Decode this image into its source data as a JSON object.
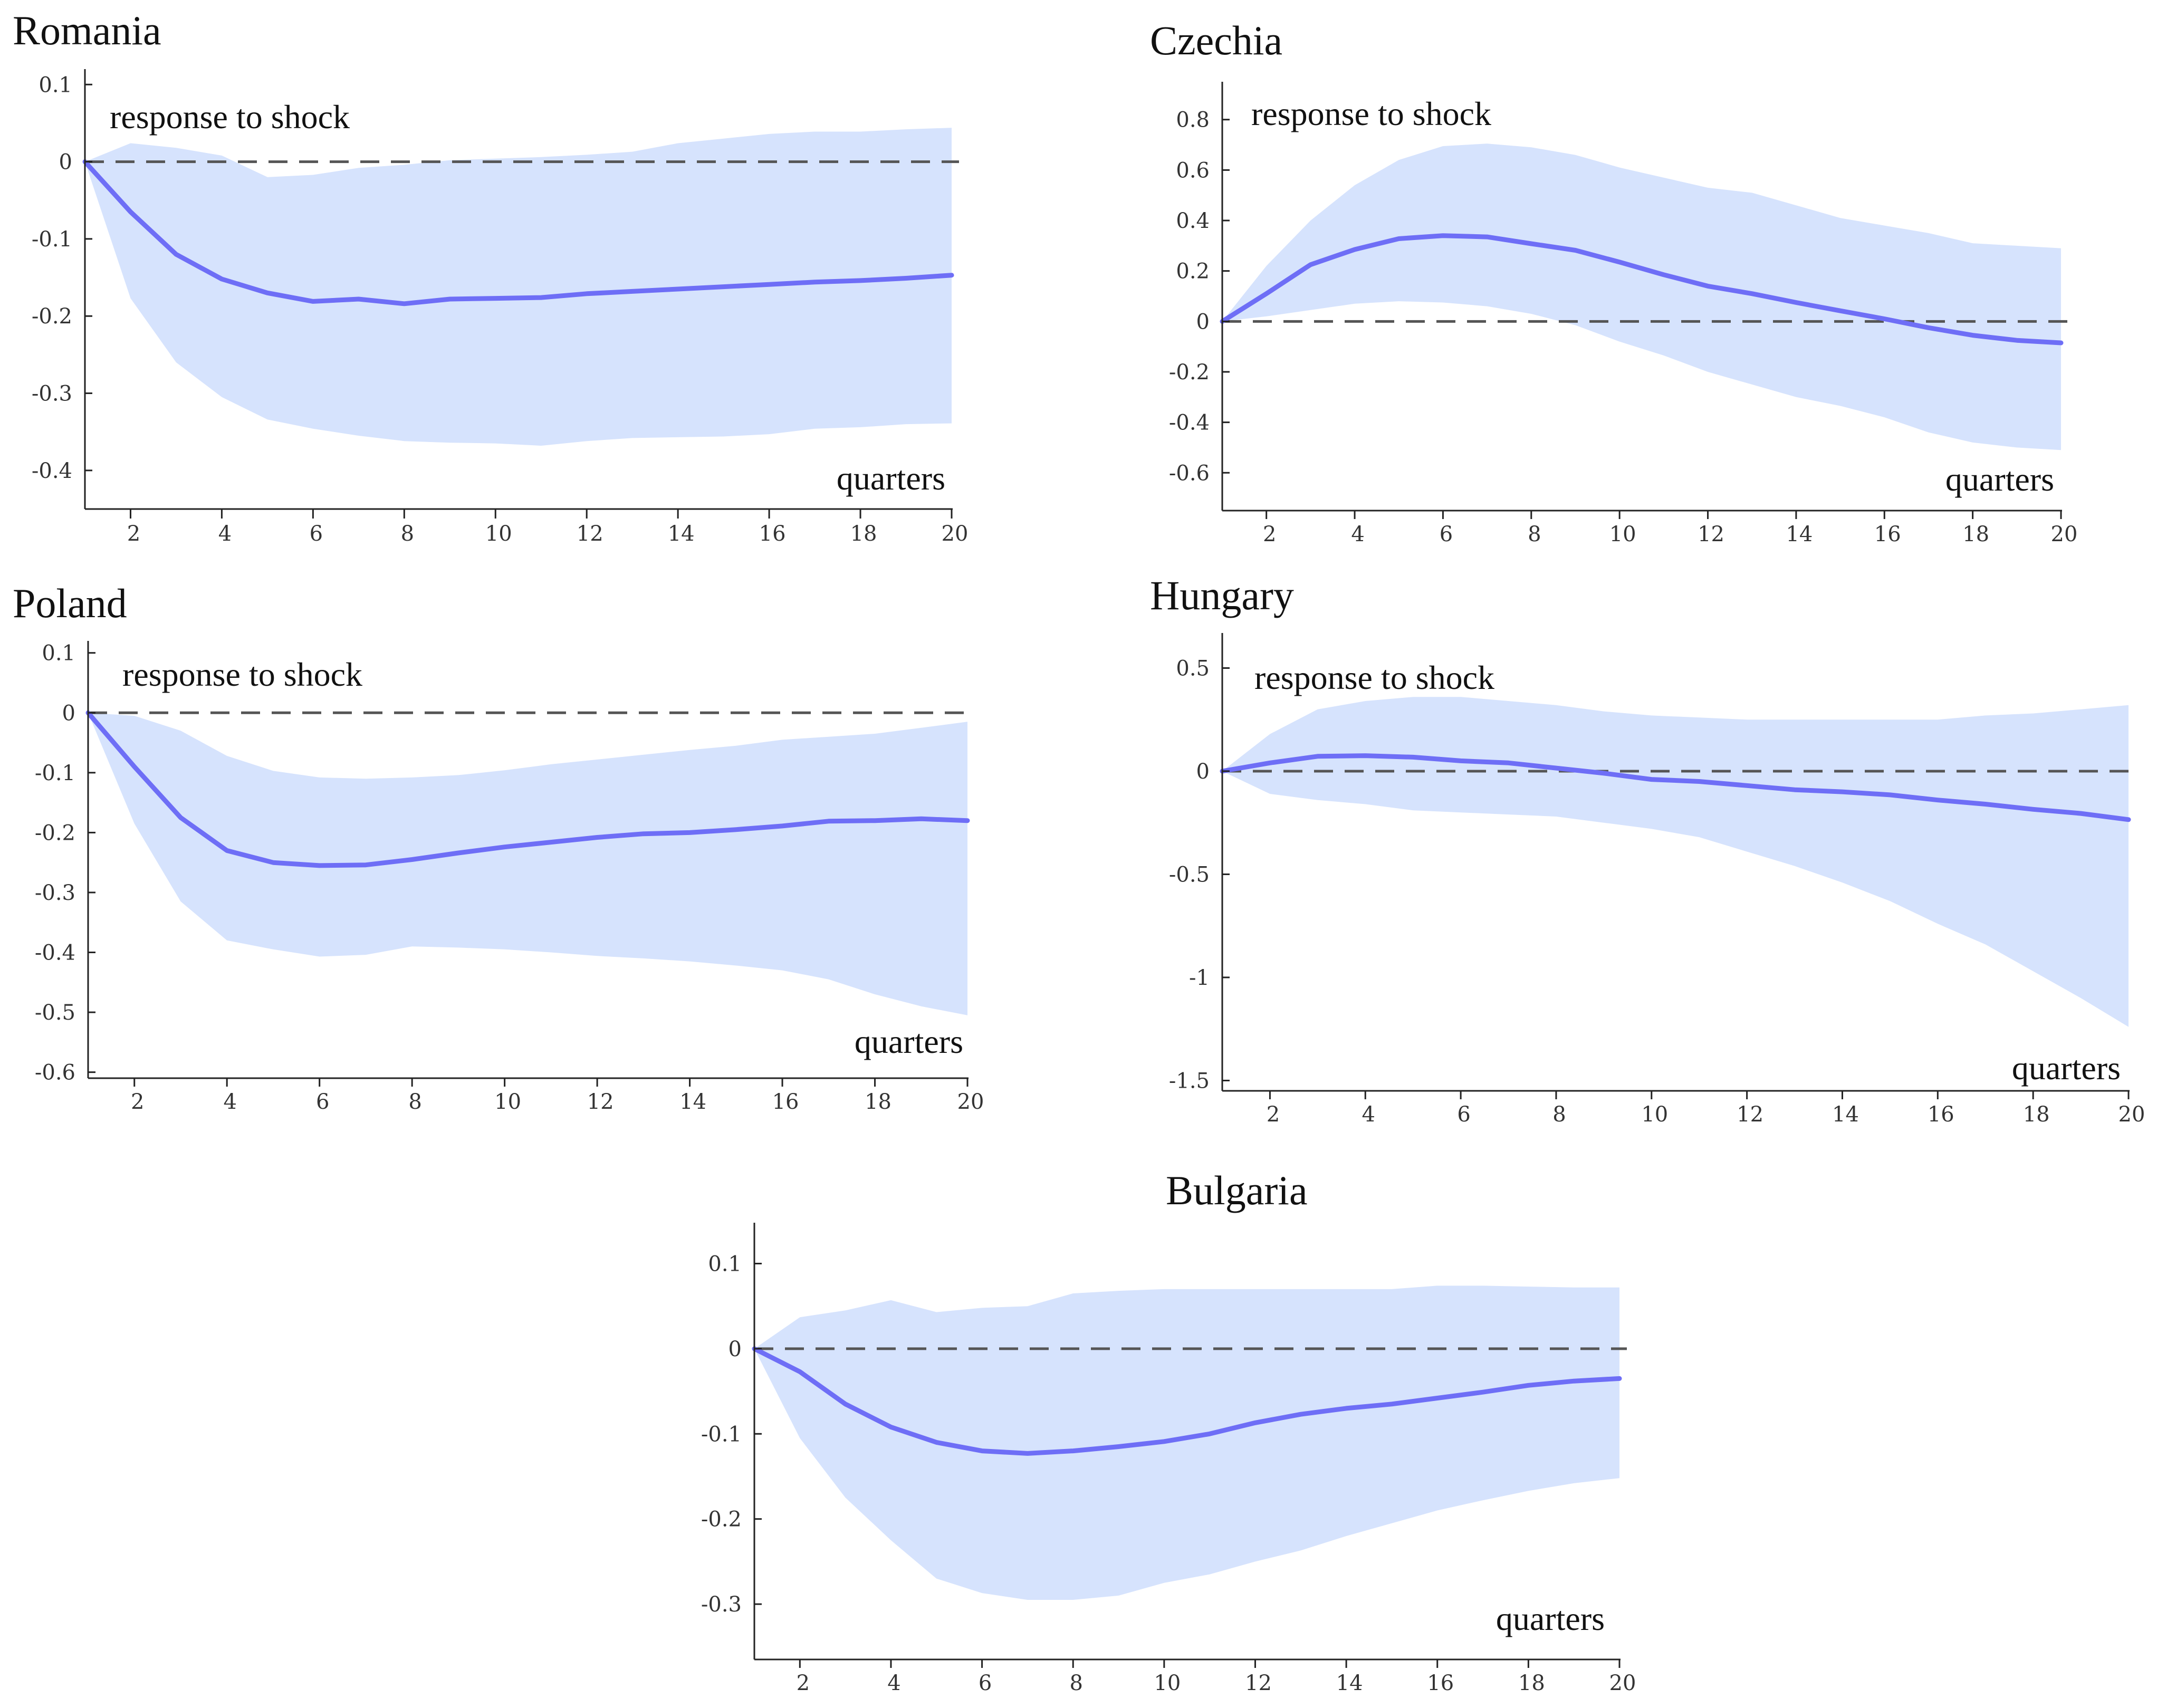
{
  "chart_data": [
    {
      "type": "area",
      "title": "Romania",
      "annotation": "response to shock",
      "xlabel": "quarters",
      "xlim": [
        1,
        20
      ],
      "ylim": [
        -0.45,
        0.12
      ],
      "x_ticks": [
        2,
        4,
        6,
        8,
        10,
        12,
        14,
        16,
        18,
        20
      ],
      "y_ticks": [
        0.1,
        0,
        -0.1,
        -0.2,
        -0.3,
        -0.4
      ],
      "x_tick_labels": [
        "2",
        "4",
        "6",
        "8",
        "10",
        "12",
        "14",
        "16",
        "18",
        "20"
      ],
      "y_tick_labels": [
        "0.1",
        "0",
        "-0.1",
        "-0.2",
        "-0.3",
        "-0.4"
      ],
      "zero_line": true,
      "series": [
        {
          "name": "median response",
          "x": [
            1,
            2,
            3,
            4,
            5,
            6,
            7,
            8,
            9,
            10,
            11,
            12,
            13,
            14,
            15,
            16,
            17,
            18,
            19,
            20
          ],
          "values": [
            0,
            -0.065,
            -0.12,
            -0.152,
            -0.17,
            -0.181,
            -0.178,
            -0.184,
            -0.178,
            -0.177,
            -0.176,
            -0.171,
            -0.168,
            -0.165,
            -0.162,
            -0.159,
            -0.156,
            -0.154,
            -0.151,
            -0.147
          ]
        },
        {
          "name": "upper band",
          "x": [
            1,
            2,
            3,
            4,
            5,
            6,
            7,
            8,
            9,
            10,
            11,
            12,
            13,
            14,
            15,
            16,
            17,
            18,
            19,
            20
          ],
          "values": [
            0,
            0.024,
            0.018,
            0.008,
            -0.02,
            -0.017,
            -0.008,
            -0.004,
            0.002,
            0.004,
            0.006,
            0.009,
            0.013,
            0.024,
            0.03,
            0.036,
            0.039,
            0.039,
            0.042,
            0.044
          ]
        },
        {
          "name": "lower band",
          "x": [
            1,
            2,
            3,
            4,
            5,
            6,
            7,
            8,
            9,
            10,
            11,
            12,
            13,
            14,
            15,
            16,
            17,
            18,
            19,
            20
          ],
          "values": [
            0,
            -0.177,
            -0.26,
            -0.305,
            -0.334,
            -0.346,
            -0.355,
            -0.362,
            -0.364,
            -0.365,
            -0.368,
            -0.362,
            -0.358,
            -0.357,
            -0.356,
            -0.353,
            -0.346,
            -0.344,
            -0.34,
            -0.339
          ]
        }
      ]
    },
    {
      "type": "area",
      "title": "Czechia",
      "annotation": "response to shock",
      "xlabel": "quarters",
      "xlim": [
        1,
        20
      ],
      "ylim": [
        -0.75,
        0.95
      ],
      "x_ticks": [
        2,
        4,
        6,
        8,
        10,
        12,
        14,
        16,
        18,
        20
      ],
      "y_ticks": [
        0.8,
        0.6,
        0.4,
        0.2,
        0,
        -0.2,
        -0.4,
        -0.6
      ],
      "x_tick_labels": [
        "2",
        "4",
        "6",
        "8",
        "10",
        "12",
        "14",
        "16",
        "18",
        "20"
      ],
      "y_tick_labels": [
        "0.8",
        "0.6",
        "0.4",
        "0.2",
        "0",
        "-0.2",
        "-0.4",
        "-0.6"
      ],
      "zero_line": true,
      "series": [
        {
          "name": "median response",
          "x": [
            1,
            2,
            3,
            4,
            5,
            6,
            7,
            8,
            9,
            10,
            11,
            12,
            13,
            14,
            15,
            16,
            17,
            18,
            19,
            20
          ],
          "values": [
            0,
            0.11,
            0.225,
            0.285,
            0.328,
            0.34,
            0.335,
            0.308,
            0.282,
            0.235,
            0.185,
            0.14,
            0.11,
            0.075,
            0.042,
            0.01,
            -0.025,
            -0.055,
            -0.075,
            -0.085
          ]
        },
        {
          "name": "upper band",
          "x": [
            1,
            2,
            3,
            4,
            5,
            6,
            7,
            8,
            9,
            10,
            11,
            12,
            13,
            14,
            15,
            16,
            17,
            18,
            19,
            20
          ],
          "values": [
            0,
            0.22,
            0.4,
            0.54,
            0.64,
            0.695,
            0.705,
            0.69,
            0.66,
            0.61,
            0.57,
            0.53,
            0.51,
            0.46,
            0.41,
            0.38,
            0.35,
            0.31,
            0.3,
            0.29
          ]
        },
        {
          "name": "lower band",
          "x": [
            1,
            2,
            3,
            4,
            5,
            6,
            7,
            8,
            9,
            10,
            11,
            12,
            13,
            14,
            15,
            16,
            17,
            18,
            19,
            20
          ],
          "values": [
            0,
            0.02,
            0.045,
            0.07,
            0.08,
            0.075,
            0.06,
            0.03,
            -0.015,
            -0.08,
            -0.135,
            -0.2,
            -0.25,
            -0.3,
            -0.335,
            -0.38,
            -0.44,
            -0.48,
            -0.5,
            -0.51
          ]
        }
      ]
    },
    {
      "type": "area",
      "title": "Poland",
      "annotation": "response to shock",
      "xlabel": "quarters",
      "xlim": [
        1,
        20
      ],
      "ylim": [
        -0.61,
        0.12
      ],
      "x_ticks": [
        2,
        4,
        6,
        8,
        10,
        12,
        14,
        16,
        18,
        20
      ],
      "y_ticks": [
        0.1,
        0,
        -0.1,
        -0.2,
        -0.3,
        -0.4,
        -0.5,
        -0.6
      ],
      "x_tick_labels": [
        "2",
        "4",
        "6",
        "8",
        "10",
        "12",
        "14",
        "16",
        "18",
        "20"
      ],
      "y_tick_labels": [
        "0.1",
        "0",
        "-0.1",
        "-0.2",
        "-0.3",
        "-0.4",
        "-0.5",
        "-0.6"
      ],
      "zero_line": true,
      "series": [
        {
          "name": "median response",
          "x": [
            1,
            2,
            3,
            4,
            5,
            6,
            7,
            8,
            9,
            10,
            11,
            12,
            13,
            14,
            15,
            16,
            17,
            18,
            19,
            20
          ],
          "values": [
            0,
            -0.09,
            -0.175,
            -0.23,
            -0.25,
            -0.255,
            -0.254,
            -0.245,
            -0.234,
            -0.224,
            -0.216,
            -0.208,
            -0.202,
            -0.2,
            -0.195,
            -0.189,
            -0.181,
            -0.18,
            -0.177,
            -0.18
          ]
        },
        {
          "name": "upper band",
          "x": [
            1,
            2,
            3,
            4,
            5,
            6,
            7,
            8,
            9,
            10,
            11,
            12,
            13,
            14,
            15,
            16,
            17,
            18,
            19,
            20
          ],
          "values": [
            0,
            -0.005,
            -0.03,
            -0.072,
            -0.097,
            -0.108,
            -0.11,
            -0.108,
            -0.104,
            -0.096,
            -0.086,
            -0.078,
            -0.07,
            -0.062,
            -0.055,
            -0.045,
            -0.04,
            -0.035,
            -0.025,
            -0.015
          ]
        },
        {
          "name": "lower band",
          "x": [
            1,
            2,
            3,
            4,
            5,
            6,
            7,
            8,
            9,
            10,
            11,
            12,
            13,
            14,
            15,
            16,
            17,
            18,
            19,
            20
          ],
          "values": [
            0,
            -0.185,
            -0.315,
            -0.38,
            -0.395,
            -0.407,
            -0.404,
            -0.39,
            -0.392,
            -0.395,
            -0.4,
            -0.406,
            -0.41,
            -0.415,
            -0.422,
            -0.43,
            -0.445,
            -0.47,
            -0.49,
            -0.505
          ]
        }
      ]
    },
    {
      "type": "area",
      "title": "Hungary",
      "annotation": "response to shock",
      "xlabel": "quarters",
      "xlim": [
        1,
        20
      ],
      "ylim": [
        -1.55,
        0.67
      ],
      "x_ticks": [
        2,
        4,
        6,
        8,
        10,
        12,
        14,
        16,
        18,
        20
      ],
      "y_ticks": [
        0.5,
        0,
        -0.5,
        -1,
        -1.5
      ],
      "x_tick_labels": [
        "2",
        "4",
        "6",
        "8",
        "10",
        "12",
        "14",
        "16",
        "18",
        "20"
      ],
      "y_tick_labels": [
        "0.5",
        "0",
        "-0.5",
        "-1",
        "-1.5"
      ],
      "zero_line": true,
      "series": [
        {
          "name": "median response",
          "x": [
            1,
            2,
            3,
            4,
            5,
            6,
            7,
            8,
            9,
            10,
            11,
            12,
            13,
            14,
            15,
            16,
            17,
            18,
            19,
            20
          ],
          "values": [
            0,
            0.04,
            0.072,
            0.075,
            0.068,
            0.05,
            0.04,
            0.015,
            -0.01,
            -0.04,
            -0.05,
            -0.07,
            -0.09,
            -0.1,
            -0.115,
            -0.14,
            -0.16,
            -0.185,
            -0.205,
            -0.235
          ]
        },
        {
          "name": "upper band",
          "x": [
            1,
            2,
            3,
            4,
            5,
            6,
            7,
            8,
            9,
            10,
            11,
            12,
            13,
            14,
            15,
            16,
            17,
            18,
            19,
            20
          ],
          "values": [
            0,
            0.18,
            0.3,
            0.34,
            0.36,
            0.36,
            0.34,
            0.32,
            0.29,
            0.27,
            0.26,
            0.25,
            0.25,
            0.25,
            0.25,
            0.25,
            0.27,
            0.28,
            0.3,
            0.32
          ]
        },
        {
          "name": "lower band",
          "x": [
            1,
            2,
            3,
            4,
            5,
            6,
            7,
            8,
            9,
            10,
            11,
            12,
            13,
            14,
            15,
            16,
            17,
            18,
            19,
            20
          ],
          "values": [
            0,
            -0.11,
            -0.14,
            -0.16,
            -0.19,
            -0.2,
            -0.21,
            -0.22,
            -0.25,
            -0.28,
            -0.32,
            -0.39,
            -0.46,
            -0.54,
            -0.63,
            -0.74,
            -0.84,
            -0.97,
            -1.1,
            -1.24
          ]
        }
      ]
    },
    {
      "type": "area",
      "title": "Bulgaria",
      "annotation": "",
      "xlabel": "quarters",
      "xlim": [
        1,
        20
      ],
      "ylim": [
        -0.365,
        0.148
      ],
      "x_ticks": [
        2,
        4,
        6,
        8,
        10,
        12,
        14,
        16,
        18,
        20
      ],
      "y_ticks": [
        0.1,
        0,
        -0.1,
        -0.2,
        -0.3
      ],
      "x_tick_labels": [
        "2",
        "4",
        "6",
        "8",
        "10",
        "12",
        "14",
        "16",
        "18",
        "20"
      ],
      "y_tick_labels": [
        "0.1",
        "0",
        "-0.1",
        "-0.2",
        "-0.3"
      ],
      "zero_line": true,
      "series": [
        {
          "name": "median response",
          "x": [
            1,
            2,
            3,
            4,
            5,
            6,
            7,
            8,
            9,
            10,
            11,
            12,
            13,
            14,
            15,
            16,
            17,
            18,
            19,
            20
          ],
          "values": [
            0,
            -0.027,
            -0.065,
            -0.092,
            -0.11,
            -0.12,
            -0.123,
            -0.12,
            -0.115,
            -0.109,
            -0.1,
            -0.087,
            -0.077,
            -0.07,
            -0.065,
            -0.058,
            -0.051,
            -0.043,
            -0.038,
            -0.035
          ]
        },
        {
          "name": "upper band",
          "x": [
            1,
            2,
            3,
            4,
            5,
            6,
            7,
            8,
            9,
            10,
            11,
            12,
            13,
            14,
            15,
            16,
            17,
            18,
            19,
            20
          ],
          "values": [
            0,
            0.037,
            0.045,
            0.057,
            0.043,
            0.048,
            0.05,
            0.065,
            0.068,
            0.07,
            0.07,
            0.07,
            0.07,
            0.07,
            0.07,
            0.074,
            0.074,
            0.073,
            0.072,
            0.072
          ]
        },
        {
          "name": "lower band",
          "x": [
            1,
            2,
            3,
            4,
            5,
            6,
            7,
            8,
            9,
            10,
            11,
            12,
            13,
            14,
            15,
            16,
            17,
            18,
            19,
            20
          ],
          "values": [
            0,
            -0.105,
            -0.175,
            -0.225,
            -0.27,
            -0.287,
            -0.295,
            -0.295,
            -0.29,
            -0.275,
            -0.265,
            -0.25,
            -0.237,
            -0.22,
            -0.205,
            -0.19,
            -0.178,
            -0.167,
            -0.158,
            -0.152
          ]
        }
      ]
    }
  ]
}
